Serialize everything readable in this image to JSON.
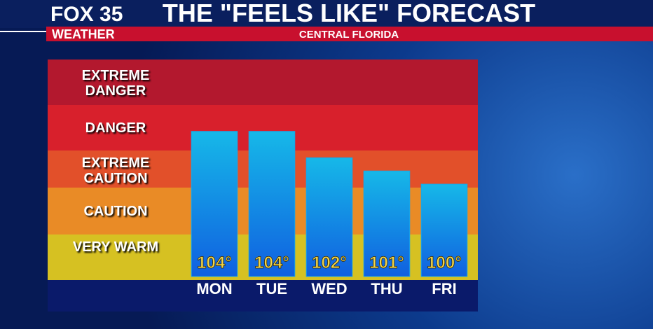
{
  "header": {
    "logo": "FOX 35",
    "brand": "WEATHER"
  },
  "chart_data": {
    "type": "bar",
    "title": "THE \"FEELS LIKE\" FORECAST",
    "subtitle": "CENTRAL FLORIDA",
    "zones": [
      "EXTREME DANGER",
      "DANGER",
      "EXTREME CAUTION",
      "CAUTION",
      "VERY WARM"
    ],
    "categories": [
      "MON",
      "TUE",
      "WED",
      "THU",
      "FRI"
    ],
    "values": [
      104,
      104,
      102,
      101,
      100
    ],
    "value_labels": [
      "104°",
      "104°",
      "102°",
      "101°",
      "100°"
    ],
    "ylim": [
      93,
      106
    ],
    "color": "#1aa6e6"
  }
}
